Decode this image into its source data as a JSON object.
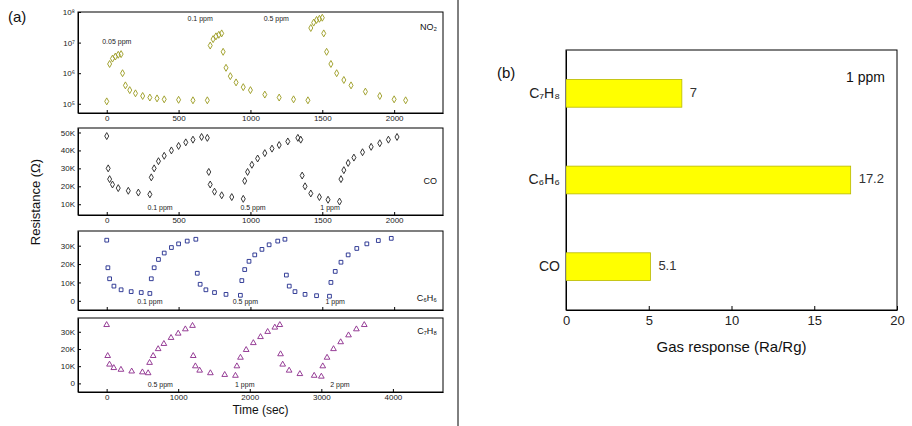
{
  "figure": {
    "labels": [
      "(a)",
      "(b)"
    ],
    "ylabel": "Resistance (Ω)"
  },
  "chart_data": [
    {
      "type": "scatter",
      "title": "NO₂",
      "color": "#9a9a1e",
      "marker": "diamond",
      "log": "y",
      "x": [
        0,
        20,
        40,
        60,
        80,
        100,
        110,
        130,
        160,
        200,
        250,
        300,
        350,
        400,
        500,
        600,
        700,
        720,
        740,
        760,
        780,
        800,
        810,
        830,
        860,
        900,
        950,
        1000,
        1100,
        1200,
        1300,
        1400,
        1420,
        1440,
        1460,
        1480,
        1500,
        1510,
        1530,
        1560,
        1600,
        1650,
        1700,
        1800,
        1900,
        2000,
        2080
      ],
      "values": [
        120000,
        2000000,
        3000000,
        3500000,
        4000000,
        4200000,
        1000000,
        400000,
        280000,
        220000,
        180000,
        160000,
        150000,
        140000,
        135000,
        130000,
        130000,
        8000000,
        13000000,
        16000000,
        18000000,
        20000000,
        5000000,
        1500000,
        800000,
        500000,
        350000,
        280000,
        200000,
        160000,
        140000,
        130000,
        30000000,
        45000000,
        55000000,
        60000000,
        65000000,
        20000000,
        5000000,
        2000000,
        1000000,
        600000,
        400000,
        250000,
        180000,
        140000,
        130000
      ],
      "xlim": [
        -200,
        2340
      ],
      "xticks": [
        0,
        500,
        1000,
        1500,
        2000
      ],
      "ylim": [
        50000,
        100000000
      ],
      "yticks": [
        {
          "value": 100000,
          "label": "10⁵"
        },
        {
          "value": 1000000,
          "label": "10⁶"
        },
        {
          "value": 10000000,
          "label": "10⁷"
        },
        {
          "value": 100000000,
          "label": "10⁸"
        }
      ],
      "annotations": [
        {
          "text": "0.05 ppm",
          "x": 70,
          "y": 10000000
        },
        {
          "text": "0.1 ppm",
          "x": 650,
          "y": 60000000
        },
        {
          "text": "0.5 ppm",
          "x": 1180,
          "y": 60000000
        }
      ]
    },
    {
      "type": "scatter",
      "title": "CO",
      "color": "#222222",
      "marker": "diamond",
      "x": [
        0,
        10,
        20,
        40,
        80,
        150,
        220,
        300,
        310,
        330,
        360,
        400,
        450,
        500,
        550,
        600,
        660,
        700,
        710,
        720,
        750,
        800,
        870,
        950,
        960,
        980,
        1010,
        1050,
        1100,
        1150,
        1200,
        1260,
        1330,
        1350,
        1360,
        1380,
        1420,
        1480,
        1540,
        1620,
        1630,
        1650,
        1680,
        1720,
        1780,
        1840,
        1900,
        1960,
        2020
      ],
      "values": [
        48000,
        30000,
        24000,
        21000,
        19000,
        17500,
        16500,
        15500,
        25000,
        30000,
        34000,
        37000,
        40000,
        42500,
        44500,
        46000,
        47500,
        47000,
        28000,
        21000,
        17000,
        15000,
        14000,
        13000,
        23000,
        28000,
        32000,
        35500,
        38500,
        41000,
        43000,
        45000,
        47000,
        46000,
        26000,
        20000,
        16000,
        14000,
        12500,
        11500,
        24000,
        29000,
        33000,
        36000,
        39000,
        42000,
        44000,
        46000,
        47500
      ],
      "xlim": [
        -200,
        2340
      ],
      "xticks": [
        0,
        500,
        1000,
        1500,
        2000
      ],
      "ylim": [
        4000,
        52500
      ],
      "yticks": [
        {
          "value": 10000,
          "label": "10K"
        },
        {
          "value": 20000,
          "label": "20K"
        },
        {
          "value": 30000,
          "label": "30K"
        },
        {
          "value": 40000,
          "label": "40K"
        },
        {
          "value": 50000,
          "label": "50K"
        }
      ],
      "annotations": [
        {
          "text": "0.1 ppm",
          "x": 371,
          "y": 8000
        },
        {
          "text": "0.5 ppm",
          "x": 1018,
          "y": 8000
        },
        {
          "text": "1 ppm",
          "x": 1554,
          "y": 8000
        }
      ]
    },
    {
      "type": "scatter",
      "title": "C₆H₆",
      "color": "#1f2a8c",
      "marker": "square",
      "tick_labels": "y",
      "x": [
        0,
        8,
        20,
        50,
        100,
        170,
        240,
        300,
        310,
        330,
        360,
        400,
        450,
        500,
        560,
        620,
        630,
        650,
        690,
        750,
        830,
        930,
        940,
        960,
        990,
        1030,
        1080,
        1130,
        1190,
        1240,
        1250,
        1270,
        1310,
        1380,
        1460,
        1550,
        1560,
        1590,
        1630,
        1680,
        1740,
        1810,
        1890,
        1980
      ],
      "values": [
        33000,
        18000,
        12000,
        8000,
        6000,
        5000,
        4500,
        4000,
        12000,
        18000,
        22500,
        26000,
        29000,
        31000,
        32500,
        33500,
        15000,
        9000,
        6000,
        4500,
        3500,
        3000,
        11000,
        17000,
        21500,
        25000,
        28000,
        30500,
        32500,
        33500,
        14000,
        8000,
        5000,
        3500,
        2800,
        2500,
        10000,
        16000,
        21000,
        25000,
        28500,
        31000,
        32800,
        34000
      ],
      "xlim": [
        -200,
        2340
      ],
      "xticks": [
        0,
        500,
        1000,
        1500,
        2000
      ],
      "ylim": [
        -5000,
        38000
      ],
      "yticks": [
        0,
        {
          "value": 10000,
          "label": "10K"
        },
        {
          "value": 20000,
          "label": "20K"
        },
        {
          "value": 30000,
          "label": "30K"
        }
      ],
      "annotations": [
        {
          "text": "0.1 ppm",
          "x": 300,
          "y": -1000
        },
        {
          "text": "0.5 ppm",
          "x": 965,
          "y": -1000
        },
        {
          "text": "1 ppm",
          "x": 1590,
          "y": -1000
        }
      ]
    },
    {
      "type": "scatter",
      "title": "C₇H₈",
      "color": "#8b2a8b",
      "marker": "triangle",
      "xlabel": "Time (sec)",
      "x": [
        0,
        15,
        40,
        100,
        200,
        350,
        500,
        580,
        600,
        650,
        720,
        800,
        900,
        1000,
        1100,
        1200,
        1210,
        1240,
        1300,
        1450,
        1650,
        1800,
        1820,
        1870,
        1950,
        2050,
        2150,
        2250,
        2350,
        2420,
        2430,
        2460,
        2550,
        2700,
        2900,
        3000,
        3020,
        3080,
        3170,
        3270,
        3380,
        3490,
        3600
      ],
      "values": [
        34000,
        16000,
        11000,
        9000,
        8000,
        7000,
        6500,
        6000,
        12000,
        16000,
        20000,
        23000,
        26500,
        29000,
        31500,
        33500,
        16000,
        10000,
        7500,
        6000,
        5000,
        4500,
        10000,
        15000,
        19500,
        23500,
        27000,
        30000,
        32500,
        34000,
        17000,
        11000,
        7500,
        5500,
        4500,
        4000,
        10000,
        15000,
        20000,
        24000,
        28000,
        31500,
        34000
      ],
      "xlim": [
        -400,
        4700
      ],
      "xticks": [
        0,
        1000,
        2000,
        3000,
        4000
      ],
      "ylim": [
        -5000,
        38000
      ],
      "yticks": [
        0,
        {
          "value": 10000,
          "label": "10K"
        },
        {
          "value": 20000,
          "label": "20K"
        },
        {
          "value": 30000,
          "label": "30K"
        }
      ],
      "annotations": [
        {
          "text": "0.5 ppm",
          "x": 750,
          "y": -1000
        },
        {
          "text": "1 ppm",
          "x": 1930,
          "y": -1000
        },
        {
          "text": "2 ppm",
          "x": 3260,
          "y": -1000
        }
      ]
    },
    {
      "type": "bar",
      "orientation": "horizontal",
      "categories": [
        "CO",
        "C₆H₆",
        "C₇H₈"
      ],
      "values": [
        5.1,
        17.2,
        7
      ],
      "color": "#ffff00",
      "xlim": [
        0,
        20
      ],
      "xticks": [
        0,
        5,
        10,
        15,
        20
      ],
      "xlabel": "Gas response (Ra/Rg)",
      "data_labels": true,
      "annotations": [
        {
          "text": "1 ppm"
        }
      ]
    }
  ]
}
